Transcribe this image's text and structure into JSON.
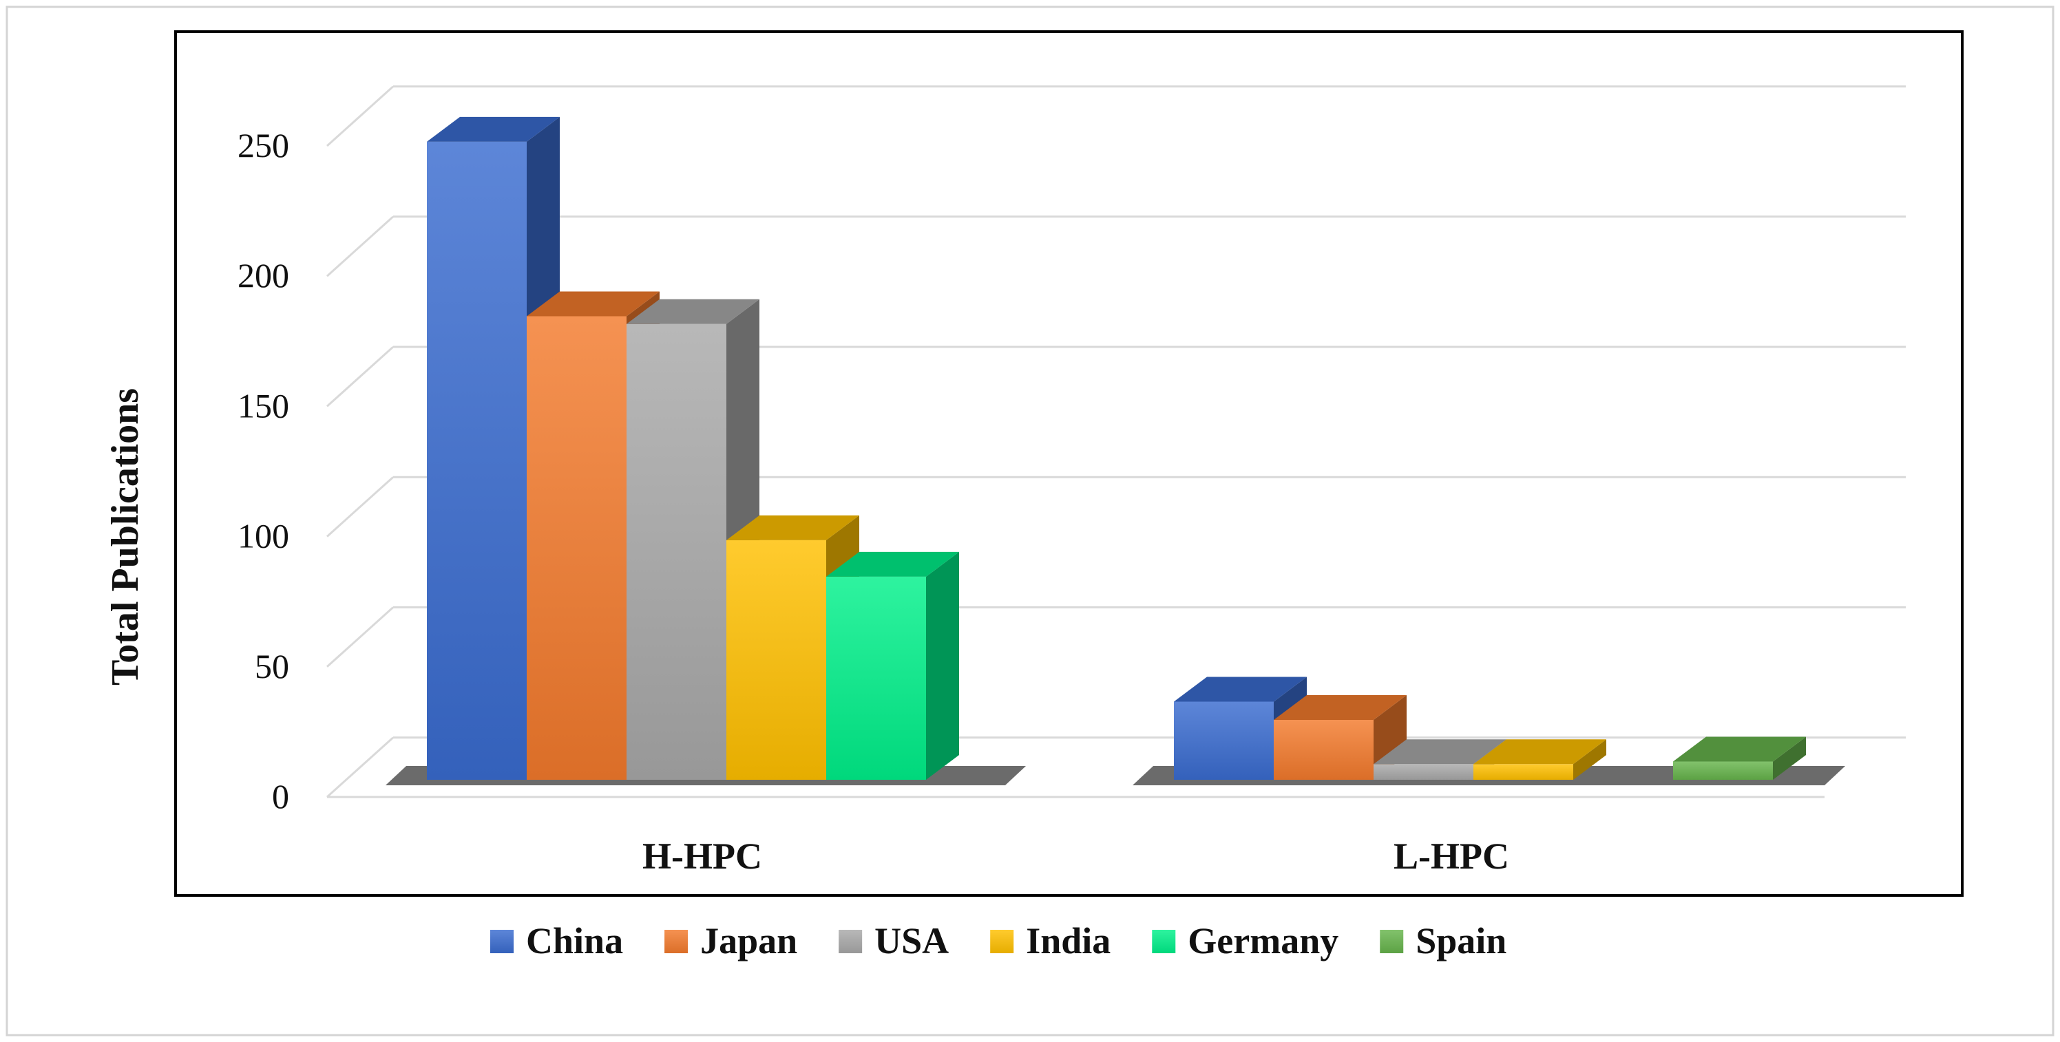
{
  "chart_data": {
    "type": "bar",
    "style": "3d-clustered",
    "categories": [
      "H-HPC",
      "L-HPC"
    ],
    "series": [
      {
        "name": "China",
        "color": "#3a6cd0",
        "values": [
          245,
          30
        ]
      },
      {
        "name": "Japan",
        "color": "#f37a2c",
        "values": [
          178,
          23
        ]
      },
      {
        "name": "USA",
        "color": "#a9a9a9",
        "values": [
          175,
          6
        ]
      },
      {
        "name": "India",
        "color": "#ffc000",
        "values": [
          92,
          6
        ]
      },
      {
        "name": "Germany",
        "color": "#00f08a",
        "values": [
          78,
          0
        ]
      },
      {
        "name": "Spain",
        "color": "#66b44c",
        "values": [
          0,
          7
        ]
      }
    ],
    "yticks": [
      "0",
      "50",
      "100",
      "150",
      "200",
      "250"
    ],
    "ylim": [
      0,
      250
    ],
    "ylabel": "Total Publications",
    "xlabel": "",
    "title": "",
    "grid": true,
    "legend_position": "bottom"
  }
}
